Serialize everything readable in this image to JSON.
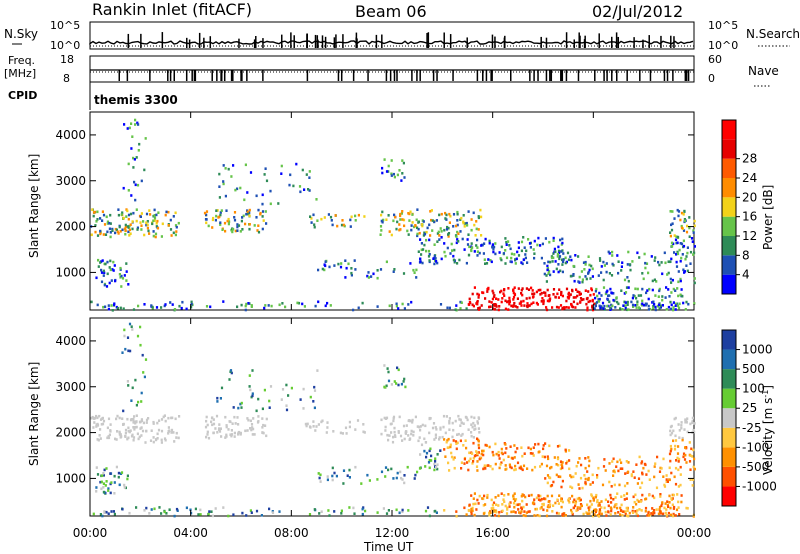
{
  "header": {
    "title": "Rankin Inlet (fitACF)",
    "beam": "Beam 06",
    "date": "02/Jul/2012"
  },
  "labels": {
    "nsky": "N.Sky",
    "nsearch": "N.Search",
    "freq": "Freq.",
    "mhz": "[MHz]",
    "nave": "Nave",
    "cpid": "CPID",
    "cpid_value": "themis 3300",
    "nsky_hi": "10^5",
    "nsky_lo": "10^0",
    "nsearch_hi": "10^5",
    "nsearch_lo": "10^0",
    "freq_hi": "18",
    "freq_lo": "8",
    "nave_hi": "60",
    "nave_lo": "0",
    "xlabel": "Time UT",
    "ylabel": "Slant Range [km]",
    "power_label": "Power [dB]",
    "velocity_label": "Velocity [m s"
  },
  "chart_data": [
    {
      "type": "heatmap",
      "name": "power",
      "x": [
        "00:00",
        "04:00",
        "08:00",
        "12:00",
        "16:00",
        "20:00",
        "00:00"
      ],
      "xlim": [
        0,
        24
      ],
      "y_ticks": [
        "1000",
        "2000",
        "3000",
        "4000"
      ],
      "ylim": [
        180,
        4500
      ],
      "colorbar": {
        "ticks": [
          "4",
          "8",
          "12",
          "16",
          "20",
          "24",
          "28"
        ],
        "colors": [
          "#0000ff",
          "#1e50b4",
          "#2e8b57",
          "#66c44a",
          "#f2d21a",
          "#ff8c00",
          "#ff5a00",
          "#e60000",
          "#ff0000"
        ]
      }
    },
    {
      "type": "heatmap",
      "name": "velocity",
      "x": [
        "00:00",
        "04:00",
        "08:00",
        "12:00",
        "16:00",
        "20:00",
        "00:00"
      ],
      "xlim": [
        0,
        24
      ],
      "y_ticks": [
        "1000",
        "2000",
        "3000",
        "4000"
      ],
      "ylim": [
        180,
        4500
      ],
      "colorbar": {
        "ticks": [
          "-1000",
          "-500",
          "-100",
          "-25",
          "25",
          "100",
          "500",
          "1000"
        ],
        "colors": [
          "#ff0000",
          "#ff5000",
          "#ff9000",
          "#ffc840",
          "#c8c8c8",
          "#66cc33",
          "#2e8b57",
          "#1f6fb0",
          "#1e3fa0"
        ]
      }
    }
  ]
}
